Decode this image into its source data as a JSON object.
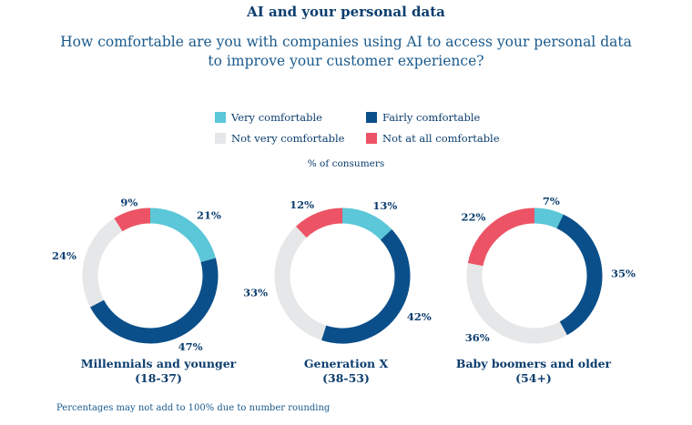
{
  "title": "AI and your personal data",
  "subtitle": "How comfortable are you with companies using AI to access your personal data to improve your customer experience?",
  "legend": [
    {
      "label": "Very comfortable",
      "color": "#5bc7d9"
    },
    {
      "label": "Fairly comfortable",
      "color": "#0b4f8a"
    },
    {
      "label": "Not very comfortable",
      "color": "#e6e7e8"
    },
    {
      "label": "Not at all comfortable",
      "color": "#ec5466"
    }
  ],
  "unit_label": "% of consumers",
  "footnote": "Percentages may not add to 100% due to number rounding",
  "chart_data": [
    {
      "type": "pie",
      "title": "Millennials and younger",
      "subtitle": "(18-37)",
      "categories": [
        "Very comfortable",
        "Fairly comfortable",
        "Not very comfortable",
        "Not at all comfortable"
      ],
      "values": [
        21,
        47,
        24,
        9
      ],
      "labels": [
        "21%",
        "47%",
        "24%",
        "9%"
      ]
    },
    {
      "type": "pie",
      "title": "Generation X",
      "subtitle": "(38-53)",
      "categories": [
        "Very comfortable",
        "Fairly comfortable",
        "Not very comfortable",
        "Not at all comfortable"
      ],
      "values": [
        13,
        42,
        33,
        12
      ],
      "labels": [
        "13%",
        "42%",
        "33%",
        "12%"
      ]
    },
    {
      "type": "pie",
      "title": "Baby boomers and older",
      "subtitle": "(54+)",
      "categories": [
        "Very comfortable",
        "Fairly comfortable",
        "Not very comfortable",
        "Not at all comfortable"
      ],
      "values": [
        7,
        35,
        36,
        22
      ],
      "labels": [
        "7%",
        "35%",
        "36%",
        "22%"
      ]
    }
  ]
}
